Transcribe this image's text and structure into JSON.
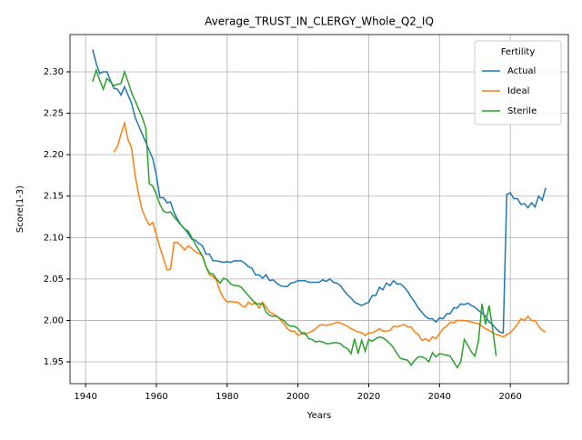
{
  "chart_data": {
    "type": "line",
    "title": "Average_TRUST_IN_CLERGY_Whole_Q2_IQ",
    "xlabel": "Years",
    "ylabel": "Score(1-3)",
    "x": [
      1942,
      1943,
      1944,
      1945,
      1946,
      1947,
      1948,
      1949,
      1950,
      1951,
      1952,
      1953,
      1954,
      1955,
      1956,
      1957,
      1958,
      1959,
      1960,
      1961,
      1962,
      1963,
      1964,
      1965,
      1966,
      1967,
      1968,
      1969,
      1970,
      1971,
      1972,
      1973,
      1974,
      1975,
      1976,
      1977,
      1978,
      1979,
      1980,
      1981,
      1982,
      1983,
      1984,
      1985,
      1986,
      1987,
      1988,
      1989,
      1990,
      1991,
      1992,
      1993,
      1994,
      1995,
      1996,
      1997,
      1998,
      1999,
      2000,
      2001,
      2002,
      2003,
      2004,
      2005,
      2006,
      2007,
      2008,
      2009,
      2010,
      2011,
      2012,
      2013,
      2014,
      2015,
      2016,
      2017,
      2018,
      2019,
      2020,
      2021,
      2022,
      2023,
      2024,
      2025,
      2026,
      2027,
      2028,
      2029,
      2030,
      2031,
      2032,
      2033,
      2034,
      2035,
      2036,
      2037,
      2038,
      2039,
      2040,
      2041,
      2042,
      2043,
      2044,
      2045,
      2046,
      2047,
      2048,
      2049,
      2050,
      2051,
      2052,
      2053,
      2054,
      2055,
      2056,
      2057,
      2058,
      2059,
      2060,
      2061,
      2062,
      2063,
      2064,
      2065,
      2066,
      2067,
      2068,
      2069,
      2070
    ],
    "series": [
      {
        "name": "Actual",
        "color": "#1f77b4",
        "values": [
          2.327,
          2.31,
          2.298,
          2.3,
          2.3,
          2.29,
          2.28,
          2.279,
          2.272,
          2.282,
          2.272,
          2.262,
          2.245,
          2.235,
          2.225,
          2.215,
          2.205,
          2.195,
          2.175,
          2.148,
          2.148,
          2.142,
          2.143,
          2.13,
          2.122,
          2.115,
          2.11,
          2.105,
          2.098,
          2.097,
          2.093,
          2.09,
          2.08,
          2.08,
          2.072,
          2.072,
          2.071,
          2.07,
          2.071,
          2.07,
          2.072,
          2.072,
          2.072,
          2.069,
          2.065,
          2.063,
          2.055,
          2.055,
          2.051,
          2.055,
          2.048,
          2.049,
          2.045,
          2.042,
          2.041,
          2.041,
          2.045,
          2.046,
          2.048,
          2.048,
          2.048,
          2.046,
          2.046,
          2.046,
          2.046,
          2.049,
          2.047,
          2.05,
          2.046,
          2.045,
          2.042,
          2.036,
          2.031,
          2.027,
          2.022,
          2.02,
          2.018,
          2.02,
          2.022,
          2.03,
          2.03,
          2.04,
          2.037,
          2.045,
          2.042,
          2.048,
          2.044,
          2.044,
          2.04,
          2.035,
          2.028,
          2.022,
          2.015,
          2.01,
          2.005,
          2.002,
          2.002,
          1.998,
          2.003,
          2.002,
          2.008,
          2.008,
          2.015,
          2.015,
          2.02,
          2.019,
          2.021,
          2.018,
          2.016,
          2.012,
          2.009,
          2.005,
          1.998,
          1.995,
          1.99,
          1.986,
          1.985,
          2.152,
          2.154,
          2.147,
          2.147,
          2.14,
          2.141,
          2.136,
          2.142,
          2.137,
          2.15,
          2.145,
          2.16
        ]
      },
      {
        "name": "Ideal",
        "color": "#ff7f0e",
        "values": [
          null,
          null,
          null,
          null,
          null,
          null,
          2.203,
          2.21,
          2.225,
          2.238,
          2.218,
          2.208,
          2.175,
          2.152,
          2.133,
          2.123,
          2.115,
          2.118,
          2.103,
          2.088,
          2.075,
          2.061,
          2.062,
          2.094,
          2.094,
          2.09,
          2.085,
          2.09,
          2.087,
          2.083,
          2.081,
          2.078,
          2.065,
          2.055,
          2.053,
          2.048,
          2.035,
          2.027,
          2.022,
          2.023,
          2.022,
          2.022,
          2.018,
          2.016,
          2.022,
          2.019,
          2.022,
          2.015,
          2.022,
          2.016,
          2.01,
          2.008,
          2.005,
          2.001,
          1.996,
          1.99,
          1.987,
          1.987,
          1.982,
          1.984,
          1.983,
          1.985,
          1.987,
          1.99,
          1.994,
          1.995,
          1.994,
          1.995,
          1.996,
          1.998,
          1.997,
          1.995,
          1.993,
          1.99,
          1.988,
          1.986,
          1.985,
          1.982,
          1.985,
          1.985,
          1.987,
          1.99,
          1.987,
          1.987,
          1.988,
          1.993,
          1.992,
          1.994,
          1.995,
          1.992,
          1.992,
          1.986,
          1.983,
          1.976,
          1.978,
          1.975,
          1.98,
          1.978,
          1.984,
          1.99,
          1.993,
          1.998,
          1.997,
          2.0,
          2.0,
          2.0,
          1.999,
          1.998,
          1.997,
          1.996,
          1.993,
          1.99,
          1.988,
          1.985,
          1.983,
          1.982,
          1.98,
          1.983,
          1.985,
          1.99,
          1.995,
          2.002,
          2.0,
          2.005,
          2.0,
          2.0,
          1.993,
          1.988,
          1.986
        ]
      },
      {
        "name": "Sterile",
        "color": "#2ca02c",
        "values": [
          2.288,
          2.302,
          2.29,
          2.279,
          2.292,
          2.288,
          2.283,
          2.285,
          2.286,
          2.3,
          2.288,
          2.275,
          2.265,
          2.255,
          2.245,
          2.232,
          2.165,
          2.162,
          2.152,
          2.14,
          2.132,
          2.13,
          2.131,
          2.125,
          2.12,
          2.115,
          2.11,
          2.108,
          2.1,
          2.092,
          2.085,
          2.078,
          2.065,
          2.057,
          2.056,
          2.05,
          2.045,
          2.051,
          2.049,
          2.044,
          2.042,
          2.042,
          2.04,
          2.035,
          2.03,
          2.025,
          2.02,
          2.02,
          2.02,
          2.01,
          2.006,
          2.005,
          2.005,
          2.002,
          2.0,
          1.995,
          1.993,
          1.993,
          1.99,
          1.985,
          1.985,
          1.978,
          1.977,
          1.974,
          1.975,
          1.974,
          1.972,
          1.972,
          1.973,
          1.973,
          1.972,
          1.968,
          1.966,
          1.96,
          1.978,
          1.96,
          1.976,
          1.963,
          1.977,
          1.975,
          1.978,
          1.98,
          1.979,
          1.976,
          1.972,
          1.967,
          1.96,
          1.954,
          1.953,
          1.952,
          1.946,
          1.952,
          1.956,
          1.956,
          1.954,
          1.95,
          1.961,
          1.956,
          1.96,
          1.959,
          1.958,
          1.957,
          1.95,
          1.943,
          1.95,
          1.977,
          1.97,
          1.962,
          1.957,
          1.975,
          2.02,
          1.995,
          2.018,
          1.99,
          1.957,
          null,
          null,
          null,
          null,
          null,
          null,
          null,
          null,
          null,
          null,
          null,
          null,
          null,
          null
        ]
      }
    ],
    "xlim": [
      1935.6,
      2076.4
    ],
    "ylim": [
      1.9237,
      2.345
    ],
    "xticks": [
      1940,
      1960,
      1980,
      2000,
      2020,
      2040,
      2060
    ],
    "yticks": [
      1.95,
      {
        "value": 2.0,
        "label": "2.00"
      },
      2.05,
      {
        "value": 2.1,
        "label": "2.10"
      },
      2.15,
      {
        "value": 2.2,
        "label": "2.20"
      },
      2.25,
      {
        "value": 2.3,
        "label": "2.30"
      }
    ],
    "grid": true,
    "legend_title": "Fertility",
    "legend_loc": "upper right"
  }
}
